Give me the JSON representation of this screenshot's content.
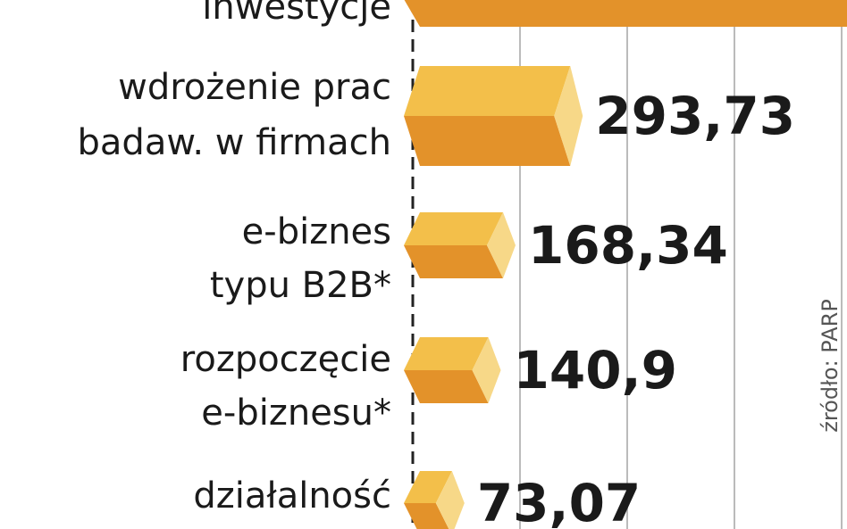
{
  "chart_data": {
    "type": "bar",
    "orientation": "horizontal",
    "categories": [
      [
        "inwestycje"
      ],
      [
        "wdrożenie prac",
        "badaw. w firmach"
      ],
      [
        "e-biznes",
        "typu B2B*"
      ],
      [
        "rozpoczęcie",
        "e-biznesu*"
      ],
      [
        "działalność"
      ]
    ],
    "values": [
      910,
      293.73,
      168.34,
      140.9,
      73.07
    ],
    "value_labels": [
      null,
      "293,73",
      "168,34",
      "140,9",
      "73,07"
    ],
    "color": "#f0b02c",
    "xlim": [
      0,
      1140
    ],
    "gridlines": [
      200,
      400,
      600,
      800,
      1000
    ],
    "source": "źródło: PARP"
  }
}
